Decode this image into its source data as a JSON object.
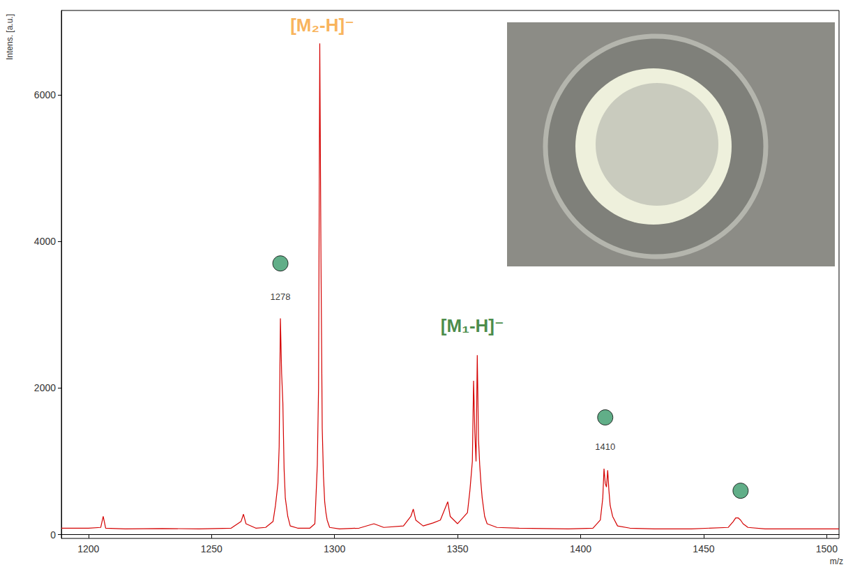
{
  "chart_data": {
    "type": "line",
    "x_label": "m/z",
    "y_label": "Intens. [a.u.]",
    "color": "#d40000",
    "xlim": [
      1189,
      1505
    ],
    "ylim": [
      -50,
      7150
    ],
    "xticks": [
      1200,
      1250,
      1300,
      1350,
      1400,
      1450,
      1500
    ],
    "yticks": [
      0,
      2000,
      4000,
      6000
    ],
    "grid": false,
    "x": [
      1189,
      1200,
      1205,
      1206,
      1207,
      1215,
      1230,
      1245,
      1258,
      1262,
      1263,
      1264,
      1268,
      1272,
      1275,
      1276,
      1277,
      1277.5,
      1278,
      1278.5,
      1279,
      1279.5,
      1280,
      1281,
      1282,
      1285,
      1290,
      1292,
      1293,
      1293.5,
      1294,
      1294.5,
      1295,
      1295.5,
      1296,
      1296.5,
      1297,
      1298,
      1302,
      1310,
      1316,
      1320,
      1328,
      1331,
      1332,
      1333,
      1336,
      1340,
      1343,
      1346,
      1347,
      1350,
      1354,
      1355,
      1356,
      1356.5,
      1357,
      1357.5,
      1358,
      1358.5,
      1359,
      1359.5,
      1360,
      1361,
      1362,
      1366,
      1375,
      1385,
      1395,
      1405,
      1408,
      1409,
      1409.5,
      1410,
      1410.5,
      1411,
      1411.5,
      1412,
      1413,
      1415,
      1420,
      1430,
      1445,
      1460,
      1462,
      1463,
      1464,
      1465,
      1466,
      1468,
      1475,
      1490,
      1505
    ],
    "values": [
      90,
      90,
      100,
      250,
      90,
      80,
      85,
      80,
      90,
      180,
      280,
      150,
      90,
      100,
      180,
      400,
      700,
      1200,
      2950,
      2200,
      1800,
      900,
      500,
      250,
      120,
      90,
      90,
      150,
      950,
      2000,
      6700,
      3700,
      1450,
      800,
      450,
      300,
      200,
      100,
      80,
      90,
      150,
      100,
      120,
      250,
      350,
      200,
      120,
      160,
      200,
      450,
      250,
      150,
      300,
      600,
      1000,
      2100,
      1400,
      1000,
      2450,
      1300,
      950,
      700,
      500,
      250,
      150,
      100,
      90,
      85,
      80,
      90,
      200,
      500,
      900,
      700,
      650,
      880,
      600,
      400,
      250,
      120,
      90,
      80,
      80,
      100,
      180,
      230,
      230,
      200,
      150,
      100,
      80,
      80,
      80
    ],
    "annotations": [
      {
        "text": "[M₂-H]⁻",
        "x": 1295,
        "y": 6950,
        "color": "#f7a030"
      },
      {
        "text": "[M₁-H]⁻",
        "x": 1356,
        "y": 2850,
        "color": "#1a6e1a"
      },
      {
        "text": "1278",
        "x": 1278,
        "y": 3250,
        "color": "#000000"
      },
      {
        "text": "1410",
        "x": 1410,
        "y": 1200,
        "color": "#000000"
      }
    ],
    "markers": {
      "x": [
        1278,
        1410,
        1465
      ],
      "values": [
        3700,
        1600,
        600
      ],
      "color": "#3a9a6a"
    }
  }
}
